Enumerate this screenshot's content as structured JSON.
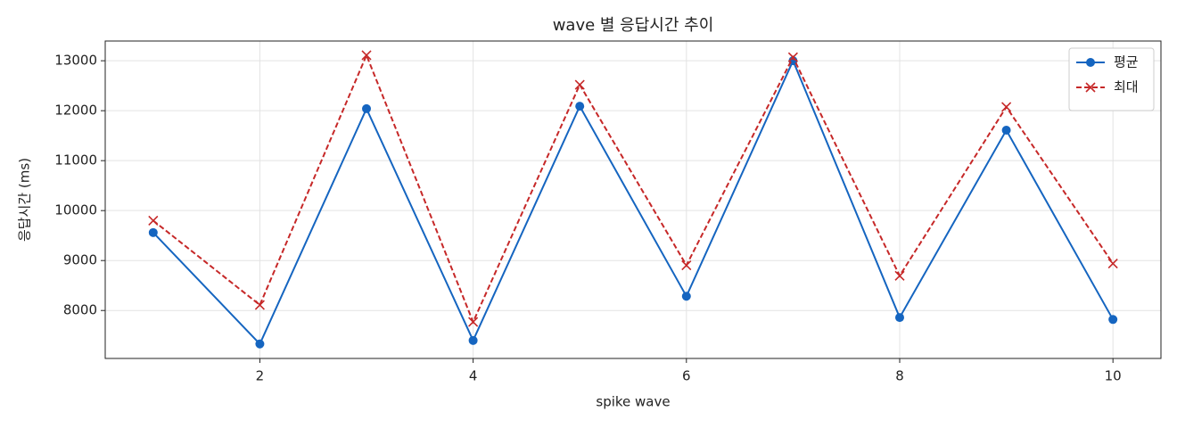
{
  "chart_data": {
    "type": "line",
    "title": "wave 별 응답시간 추이",
    "xlabel": "spike wave",
    "ylabel": "응답시간 (ms)",
    "x": [
      1,
      2,
      3,
      4,
      5,
      6,
      7,
      8,
      9,
      10
    ],
    "series": [
      {
        "name": "평균",
        "color": "#1565c0",
        "marker": "o",
        "linestyle": "solid",
        "values": [
          9560,
          7330,
          12040,
          7400,
          12090,
          8285,
          13000,
          7860,
          11610,
          7820
        ]
      },
      {
        "name": "최대",
        "color": "#c62828",
        "marker": "x",
        "linestyle": "dashed",
        "values": [
          9800,
          8110,
          13110,
          7770,
          12520,
          8905,
          13070,
          8695,
          12075,
          8940
        ]
      }
    ],
    "xlim": [
      0.55,
      10.45
    ],
    "ylim": [
      7040,
      13395
    ],
    "xticks": [
      2,
      4,
      6,
      8,
      10
    ],
    "yticks": [
      8000,
      9000,
      10000,
      11000,
      12000,
      13000
    ],
    "grid": true,
    "legend": "upper right"
  }
}
